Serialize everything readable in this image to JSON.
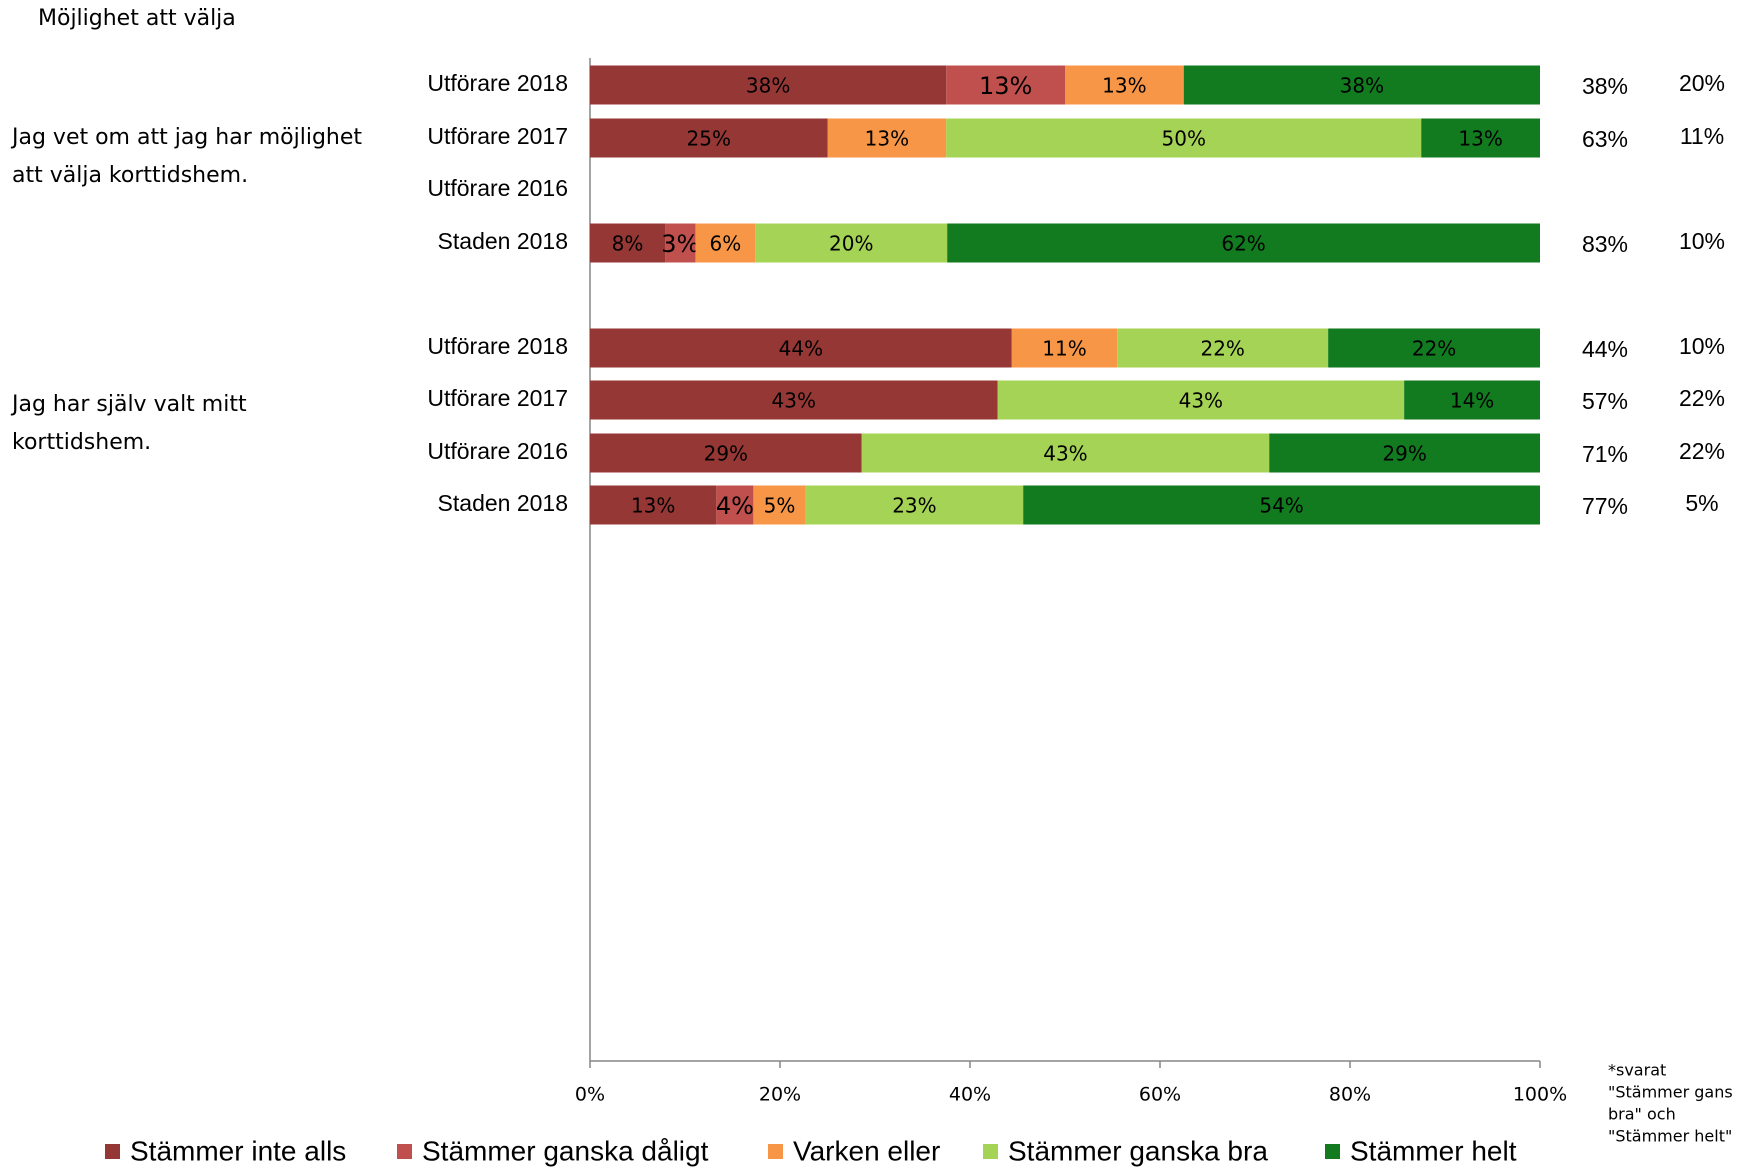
{
  "chart_data": {
    "type": "bar",
    "orientation": "horizontal",
    "stacked": true,
    "title": "Möjlighet att välja",
    "xlim": [
      0,
      100
    ],
    "x_ticks": [
      "0%",
      "20%",
      "40%",
      "60%",
      "80%",
      "100%"
    ],
    "grid": false,
    "legend_position": "bottom",
    "series": [
      {
        "name": "Stämmer inte alls",
        "color": "#953735"
      },
      {
        "name": "Stämmer ganska dåligt",
        "color": "#C0504D"
      },
      {
        "name": "Varken eller",
        "color": "#F79646"
      },
      {
        "name": "Stämmer ganska bra",
        "color": "#A5D355"
      },
      {
        "name": "Stämmer helt",
        "color": "#127A1F"
      }
    ],
    "groups": [
      {
        "question": [
          "Jag vet om att jag har möjlighet",
          "att välja korttidshem."
        ],
        "rows": [
          {
            "label": "Utförare 2018",
            "values": [
              37.5,
              12.5,
              12.5,
              0,
              37.5
            ],
            "labels": [
              "38%",
              "13%",
              "13%",
              "",
              "38%"
            ],
            "col1": "38%",
            "col2": "20%"
          },
          {
            "label": "Utförare 2017",
            "values": [
              25,
              0,
              12.5,
              50,
              12.5
            ],
            "labels": [
              "25%",
              "",
              "13%",
              "50%",
              "13%"
            ],
            "col1": "63%",
            "col2": "11%"
          },
          {
            "label": "Utförare 2016",
            "values": [
              0,
              0,
              0,
              0,
              0
            ],
            "labels": [
              "",
              "",
              "",
              "",
              ""
            ],
            "col1": "",
            "col2": ""
          },
          {
            "label": "Staden 2018",
            "values": [
              7.9,
              3.2,
              6.3,
              20.2,
              62.4
            ],
            "labels": [
              "8%",
              "3%",
              "6%",
              "20%",
              "62%"
            ],
            "col1": "83%",
            "col2": "10%"
          }
        ]
      },
      {
        "question": [
          "Jag har själv valt mitt",
          "korttidshem."
        ],
        "rows": [
          {
            "label": "Utförare 2018",
            "values": [
              44.4,
              0,
              11.1,
              22.2,
              22.3
            ],
            "labels": [
              "44%",
              "",
              "11%",
              "22%",
              "22%"
            ],
            "col1": "44%",
            "col2": "10%"
          },
          {
            "label": "Utförare 2017",
            "values": [
              42.9,
              0,
              0,
              42.8,
              14.3
            ],
            "labels": [
              "43%",
              "",
              "",
              "43%",
              "14%"
            ],
            "col1": "57%",
            "col2": "22%"
          },
          {
            "label": "Utförare 2016",
            "values": [
              28.6,
              0,
              0,
              42.9,
              28.5
            ],
            "labels": [
              "29%",
              "",
              "",
              "43%",
              "29%"
            ],
            "col1": "71%",
            "col2": "22%"
          },
          {
            "label": "Staden 2018",
            "values": [
              13.3,
              3.9,
              5.5,
              22.9,
              54.4
            ],
            "labels": [
              "13%",
              "4%",
              "5%",
              "23%",
              "54%"
            ],
            "col1": "77%",
            "col2": "5%"
          }
        ]
      }
    ],
    "note": [
      "*svarat",
      "\"Stämmer gans",
      "bra\" och",
      "\"Stämmer helt\""
    ]
  }
}
